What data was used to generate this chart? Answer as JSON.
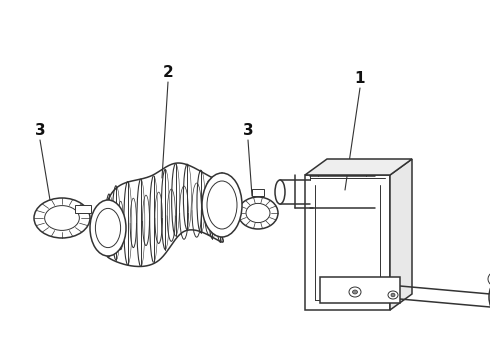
{
  "background_color": "#ffffff",
  "line_color": "#333333",
  "label_color": "#111111",
  "figsize": [
    4.9,
    3.6
  ],
  "dpi": 100,
  "xlim": [
    0,
    490
  ],
  "ylim": [
    0,
    360
  ]
}
